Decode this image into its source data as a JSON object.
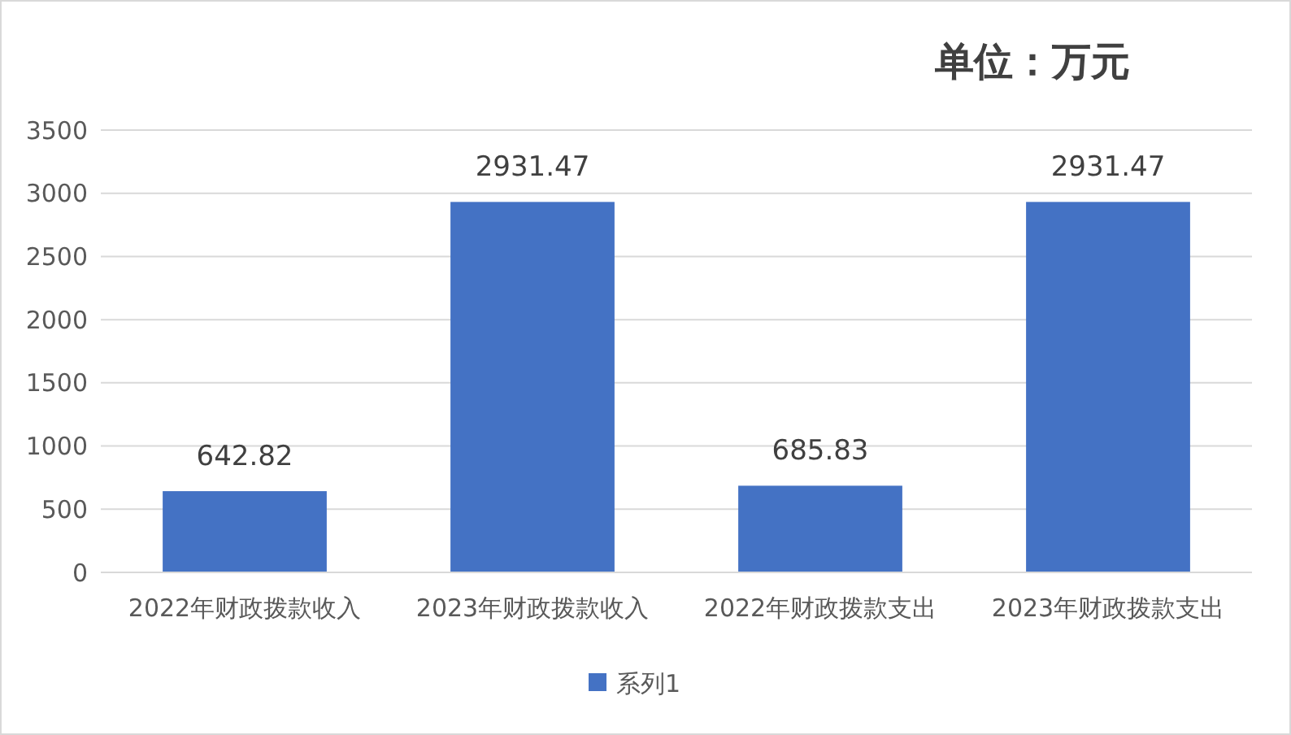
{
  "chart_data": {
    "type": "bar",
    "title": "单位：万元",
    "categories": [
      "2022年财政拨款收入",
      "2023年财政拨款收入",
      "2022年财政拨款支出",
      "2023年财政拨款支出"
    ],
    "series": [
      {
        "name": "系列1",
        "color": "#4472c4",
        "values": [
          642.82,
          2931.47,
          685.83,
          2931.47
        ]
      }
    ],
    "ylim": [
      0,
      3500
    ],
    "yticks": [
      0,
      500,
      1000,
      1500,
      2000,
      2500,
      3000,
      3500
    ],
    "grid": "y",
    "legend": "bottom",
    "data_labels": true
  }
}
